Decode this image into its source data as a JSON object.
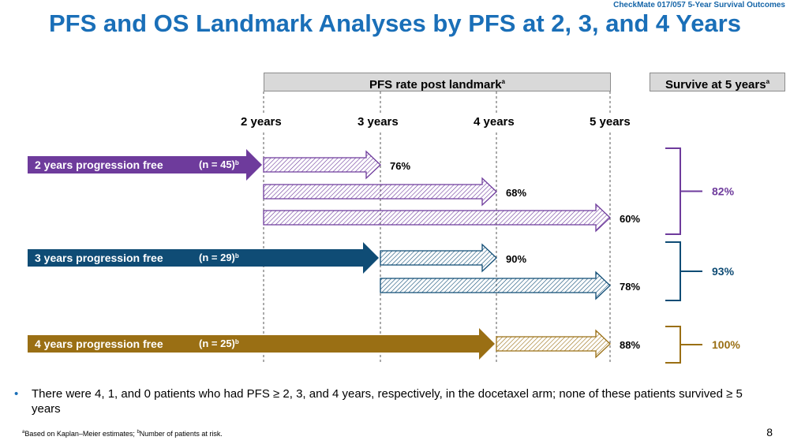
{
  "header": {
    "study": "CheckMate 017/057 5-Year Survival Outcomes",
    "title": "PFS and OS Landmark Analyses by PFS at 2, 3, and 4 Years"
  },
  "column_headers": {
    "pfs_rate": "PFS rate post landmark",
    "pfs_rate_sup": "a",
    "survive": "Survive at 5 years",
    "survive_sup": "a"
  },
  "years": [
    "2 years",
    "3 years",
    "4 years",
    "5 years"
  ],
  "colors": {
    "purple": "#6e3b9c",
    "navy": "#0f4c75",
    "gold": "#9a6f14"
  },
  "groups": [
    {
      "label": "2 years progression free",
      "n": "(n = 45)",
      "n_sup": "b",
      "color": "purple",
      "start_year": 0,
      "outcomes": [
        {
          "to_year": 1,
          "pct": "76%"
        },
        {
          "to_year": 2,
          "pct": "68%"
        },
        {
          "to_year": 3,
          "pct": "60%"
        }
      ],
      "survive": "82%"
    },
    {
      "label": "3 years progression free",
      "n": "(n = 29)",
      "n_sup": "b",
      "color": "navy",
      "start_year": 1,
      "outcomes": [
        {
          "to_year": 2,
          "pct": "90%"
        },
        {
          "to_year": 3,
          "pct": "78%"
        }
      ],
      "survive": "93%"
    },
    {
      "label": "4 years progression free",
      "n": "(n = 25)",
      "n_sup": "b",
      "color": "gold",
      "start_year": 2,
      "outcomes": [
        {
          "to_year": 3,
          "pct": "88%"
        }
      ],
      "survive": "100%"
    }
  ],
  "bullet": "There were 4, 1, and 0 patients who had PFS ≥ 2, 3, and 4 years, respectively, in the docetaxel arm; none of these patients survived ≥ 5 years",
  "footnote": {
    "a_sup": "a",
    "a_text": "Based on Kaplan–Meier estimates; ",
    "b_sup": "b",
    "b_text": "Number of patients at risk."
  },
  "page_number": "8"
}
